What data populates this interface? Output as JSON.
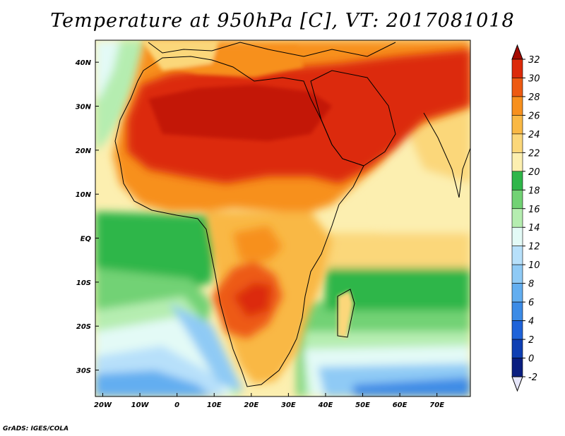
{
  "title": "Temperature at 950hPa [C], VT: 2017081018",
  "credit": "GrADS: IGES/COLA",
  "map": {
    "lon_range": [
      -22,
      79
    ],
    "lat_range": [
      -36,
      45
    ],
    "lat_ticks": [
      {
        "value": 40,
        "label": "40N"
      },
      {
        "value": 30,
        "label": "30N"
      },
      {
        "value": 20,
        "label": "20N"
      },
      {
        "value": 10,
        "label": "10N"
      },
      {
        "value": 0,
        "label": "EQ"
      },
      {
        "value": -10,
        "label": "10S"
      },
      {
        "value": -20,
        "label": "20S"
      },
      {
        "value": -30,
        "label": "30S"
      }
    ],
    "lon_ticks": [
      {
        "value": -20,
        "label": "20W"
      },
      {
        "value": -10,
        "label": "10W"
      },
      {
        "value": 0,
        "label": "0"
      },
      {
        "value": 10,
        "label": "10E"
      },
      {
        "value": 20,
        "label": "20E"
      },
      {
        "value": 30,
        "label": "30E"
      },
      {
        "value": 40,
        "label": "40E"
      },
      {
        "value": 50,
        "label": "50E"
      },
      {
        "value": 60,
        "label": "60E"
      },
      {
        "value": 70,
        "label": "70E"
      }
    ]
  },
  "colorbar": {
    "labels": [
      "32",
      "30",
      "28",
      "26",
      "24",
      "22",
      "20",
      "18",
      "16",
      "14",
      "12",
      "10",
      "8",
      "6",
      "4",
      "2",
      "0",
      "-2"
    ],
    "colors": [
      "#a50a00",
      "#dc2a0a",
      "#ed5a12",
      "#f7901e",
      "#f9b845",
      "#fbd77a",
      "#fcefb0",
      "#2fb64a",
      "#72d274",
      "#b5edb0",
      "#e3faf6",
      "#b7e0fa",
      "#8fcaf5",
      "#63aef0",
      "#3c8be6",
      "#1f63d9",
      "#0f3fb3",
      "#0a1e80",
      "#e6e6fa"
    ]
  }
}
